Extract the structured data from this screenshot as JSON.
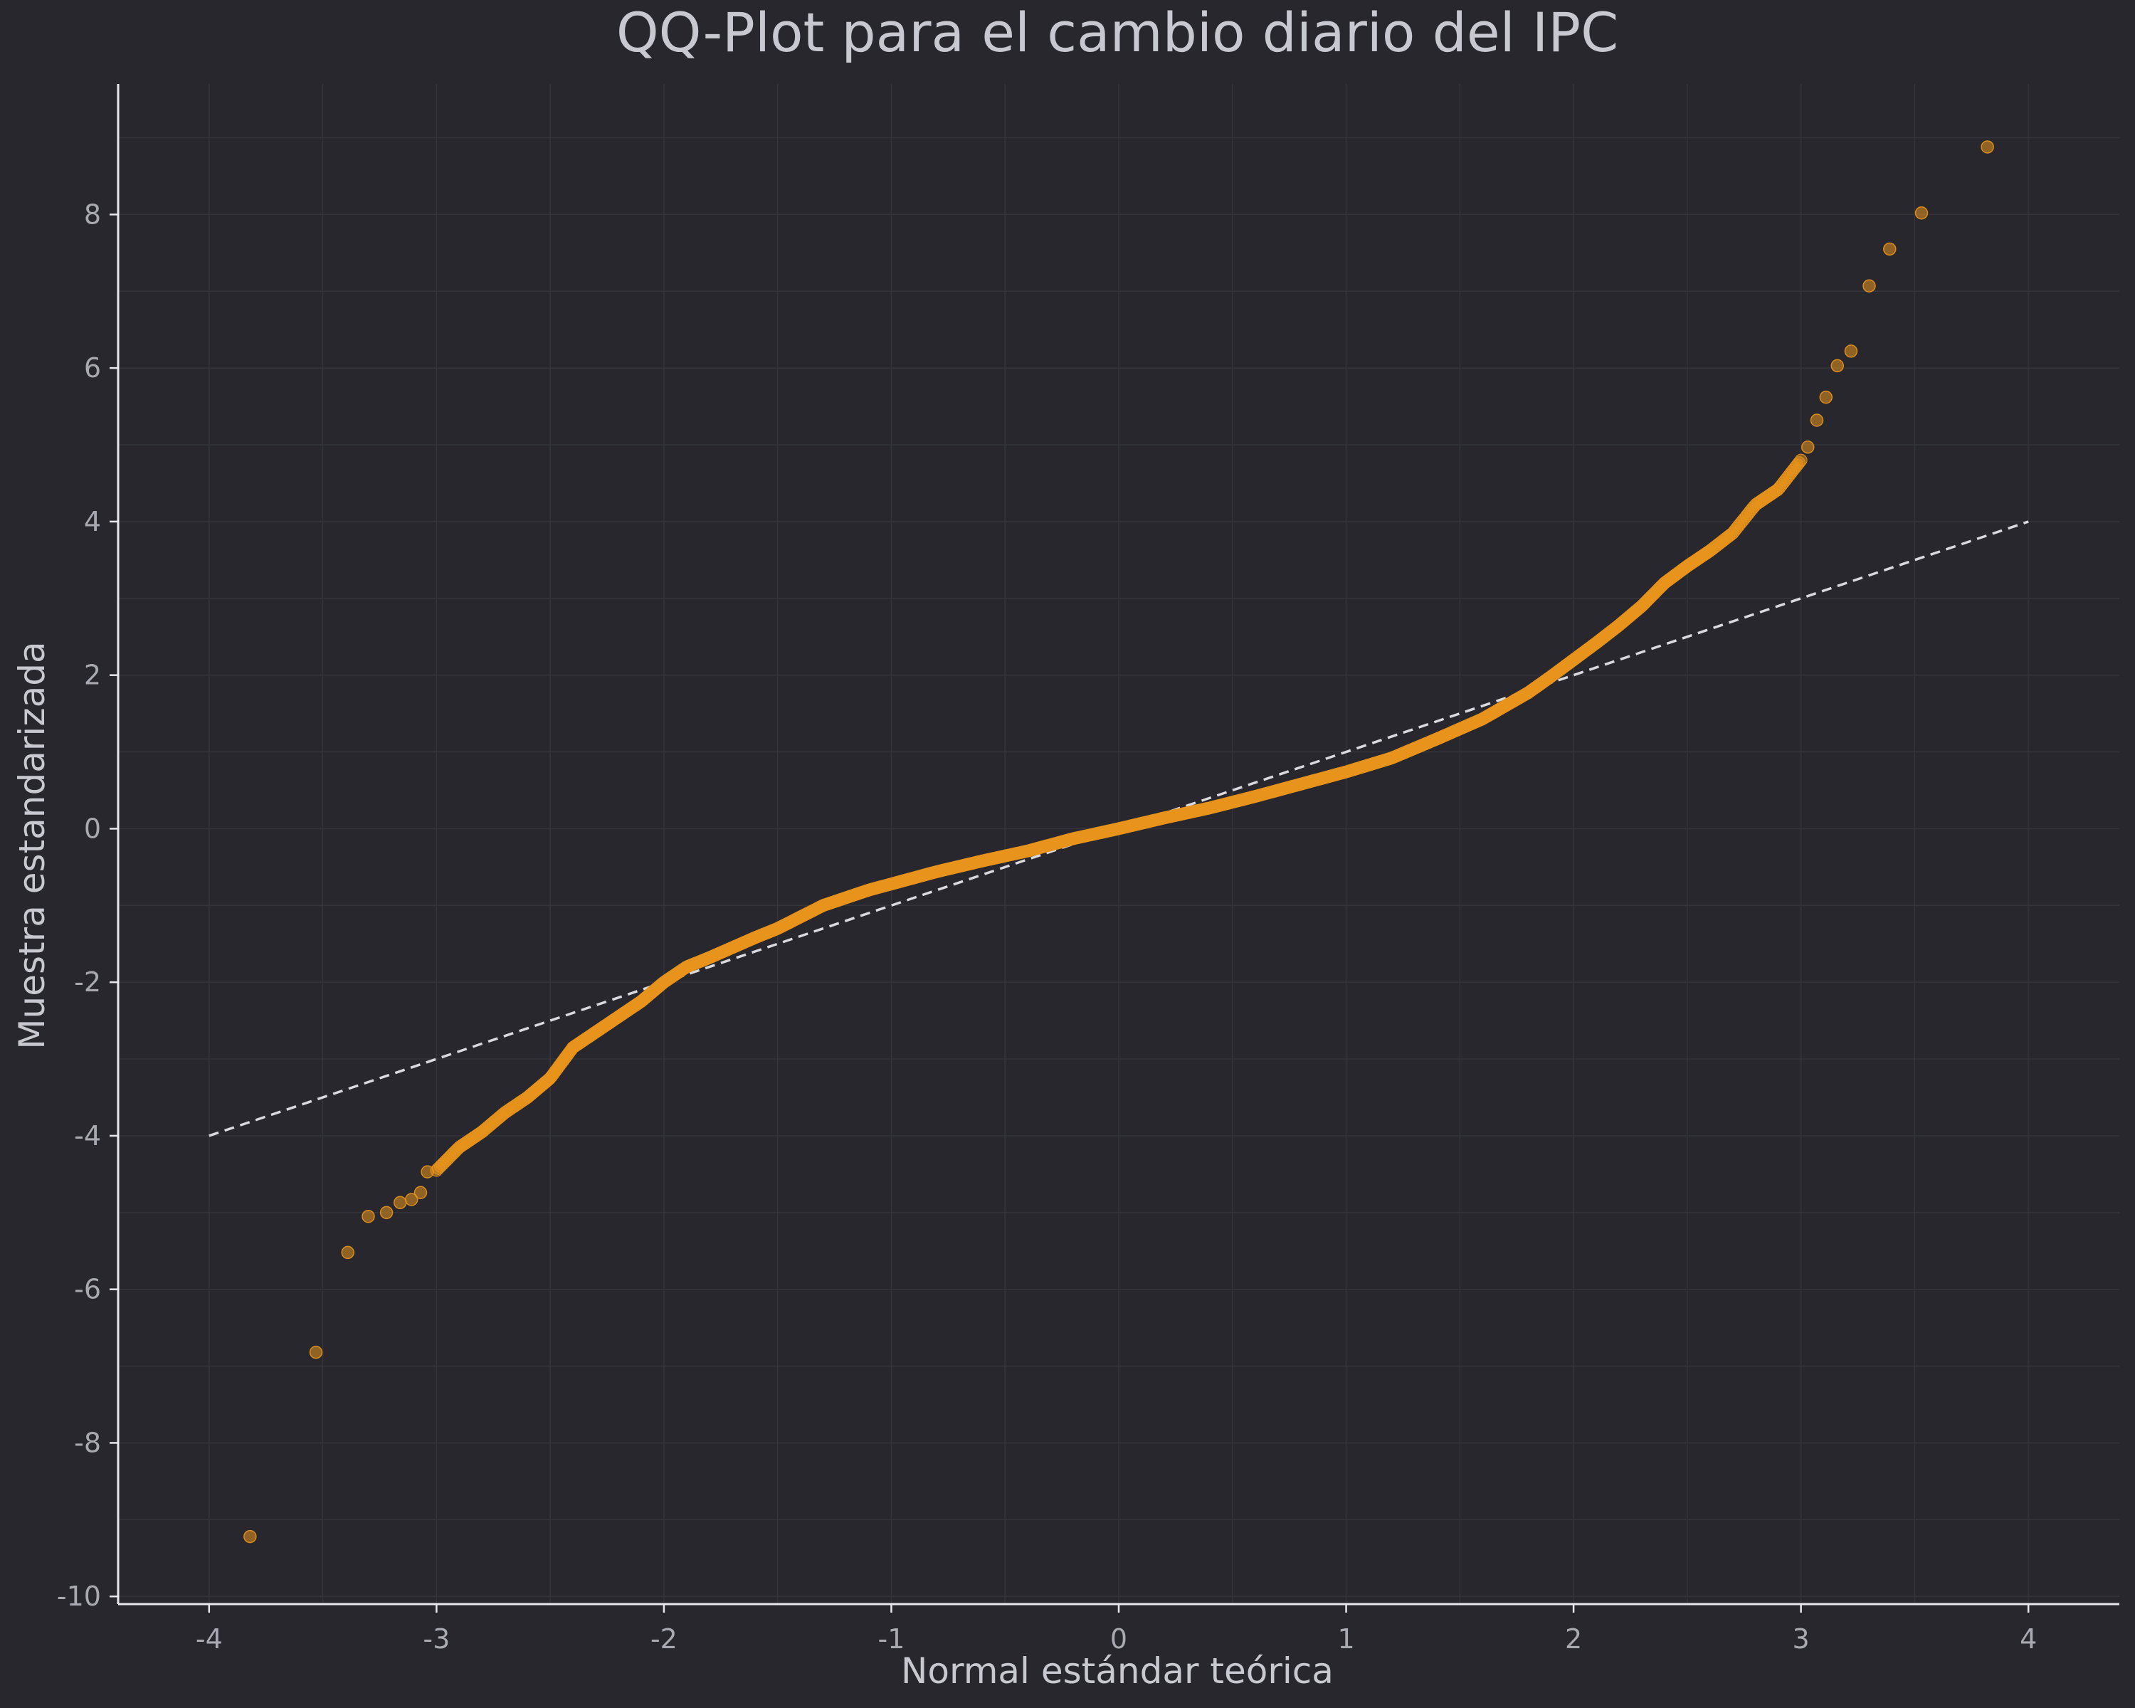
{
  "chart_data": {
    "type": "scatter",
    "title": "QQ-Plot para el cambio diario del IPC",
    "xlabel": "Normal estándar teórica",
    "ylabel": "Muestra estandarizada",
    "xlim": [
      -4.4,
      4.4
    ],
    "ylim": [
      -10.1,
      9.7
    ],
    "xticks": [
      -4,
      -3,
      -2,
      -1,
      0,
      1,
      2,
      3,
      4
    ],
    "yticks": [
      -10,
      -8,
      -6,
      -4,
      -2,
      0,
      2,
      4,
      6,
      8
    ],
    "grid": true,
    "reference_line": {
      "style": "dashed",
      "from": [
        -4,
        -4
      ],
      "to": [
        4,
        4
      ]
    },
    "curve_knots": {
      "x": [
        -3.0,
        -2.9,
        -2.8,
        -2.7,
        -2.6,
        -2.5,
        -2.4,
        -2.3,
        -2.2,
        -2.1,
        -2.0,
        -1.9,
        -1.8,
        -1.7,
        -1.6,
        -1.5,
        -1.4,
        -1.3,
        -1.2,
        -1.1,
        -1.0,
        -0.8,
        -0.6,
        -0.4,
        -0.2,
        0.0,
        0.2,
        0.4,
        0.6,
        0.8,
        1.0,
        1.2,
        1.4,
        1.6,
        1.8,
        1.9,
        2.0,
        2.1,
        2.2,
        2.3,
        2.4,
        2.5,
        2.6,
        2.7,
        2.8,
        2.9,
        3.0
      ],
      "y": [
        -4.45,
        -4.15,
        -3.95,
        -3.7,
        -3.5,
        -3.25,
        -2.85,
        -2.65,
        -2.45,
        -2.25,
        -2.0,
        -1.8,
        -1.68,
        -1.55,
        -1.42,
        -1.3,
        -1.15,
        -1.0,
        -0.9,
        -0.8,
        -0.72,
        -0.56,
        -0.42,
        -0.29,
        -0.13,
        0.0,
        0.14,
        0.27,
        0.42,
        0.58,
        0.74,
        0.92,
        1.17,
        1.43,
        1.77,
        1.98,
        2.2,
        2.42,
        2.65,
        2.9,
        3.2,
        3.42,
        3.62,
        3.85,
        4.22,
        4.42,
        4.8
      ]
    },
    "tail_points": [
      {
        "x": -3.82,
        "y": -9.22
      },
      {
        "x": -3.53,
        "y": -6.82
      },
      {
        "x": -3.39,
        "y": -5.52
      },
      {
        "x": -3.3,
        "y": -5.05
      },
      {
        "x": -3.22,
        "y": -5.0
      },
      {
        "x": -3.16,
        "y": -4.87
      },
      {
        "x": -3.11,
        "y": -4.83
      },
      {
        "x": -3.07,
        "y": -4.74
      },
      {
        "x": -3.04,
        "y": -4.47
      },
      {
        "x": 3.03,
        "y": 4.97
      },
      {
        "x": 3.07,
        "y": 5.32
      },
      {
        "x": 3.11,
        "y": 5.62
      },
      {
        "x": 3.16,
        "y": 6.03
      },
      {
        "x": 3.22,
        "y": 6.22
      },
      {
        "x": 3.3,
        "y": 7.07
      },
      {
        "x": 3.39,
        "y": 7.55
      },
      {
        "x": 3.53,
        "y": 8.02
      },
      {
        "x": 3.82,
        "y": 8.88
      }
    ],
    "colors": {
      "background": "#27272d",
      "points": "#e8931c",
      "reference_line": "#d9d9de",
      "grid": "#34343b",
      "axis": "#e8e8ec"
    }
  }
}
